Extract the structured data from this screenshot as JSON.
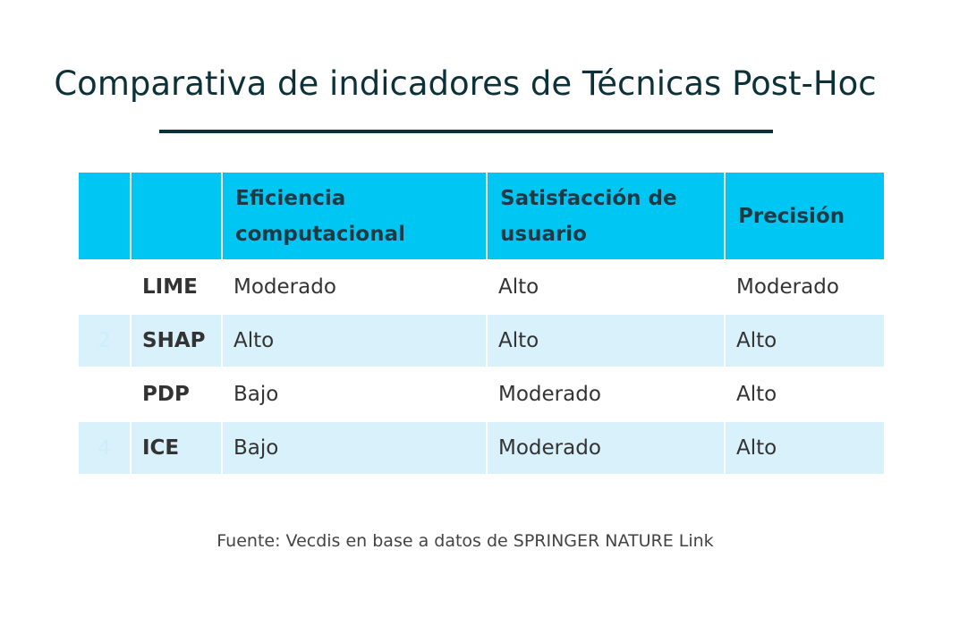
{
  "title": "Comparativa de indicadores de Técnicas Post-Hoc",
  "table": {
    "headers": [
      "",
      "",
      "Eficiencia computacional",
      "Satisfacción de usuario",
      "Precisión"
    ],
    "rows": [
      {
        "num": "",
        "name": "LIME",
        "eficiencia": "Moderado",
        "satisfaccion": "Alto",
        "precision": "Moderado"
      },
      {
        "num": "2",
        "name": "SHAP",
        "eficiencia": "Alto",
        "satisfaccion": "Alto",
        "precision": "Alto"
      },
      {
        "num": "",
        "name": "PDP",
        "eficiencia": "Bajo",
        "satisfaccion": "Moderado",
        "precision": "Alto"
      },
      {
        "num": "4",
        "name": "ICE",
        "eficiencia": "Bajo",
        "satisfaccion": "Moderado",
        "precision": "Alto"
      }
    ]
  },
  "source": "Fuente: Vecdis en base a datos de SPRINGER NATURE Link",
  "colors": {
    "header_bg": "#00c6f4",
    "row_shade": "#d8f1fb",
    "title": "#0d3138"
  }
}
